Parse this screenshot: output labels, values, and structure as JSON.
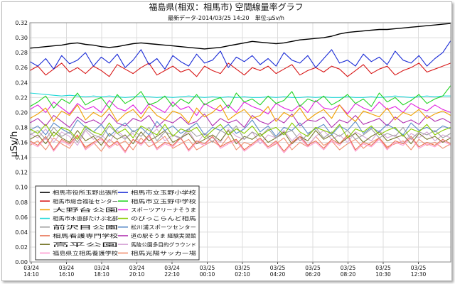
{
  "chart_data": {
    "type": "line",
    "title": "福島県(相双：相馬市) 空間線量率グラフ",
    "subtitle": "最新データ-2014/03/25 14:20　単位:μSv/h",
    "ylabel": "μSv/h",
    "xlabel": "",
    "ylim": [
      0,
      0.32
    ],
    "yticks": [
      "0.00",
      "0.02",
      "0.04",
      "0.06",
      "0.08",
      "0.10",
      "0.12",
      "0.14",
      "0.16",
      "0.18",
      "0.20",
      "0.22",
      "0.24",
      "0.26",
      "0.28",
      "0.30",
      "0.32"
    ],
    "xticks": [
      {
        "date": "03/24",
        "time": "14:10"
      },
      {
        "date": "03/24",
        "time": "16:10"
      },
      {
        "date": "03/24",
        "time": "18:10"
      },
      {
        "date": "03/24",
        "time": "20:10"
      },
      {
        "date": "03/24",
        "time": "22:10"
      },
      {
        "date": "03/25",
        "time": "00:10"
      },
      {
        "date": "03/25",
        "time": "02:10"
      },
      {
        "date": "03/25",
        "time": "04:20"
      },
      {
        "date": "03/25",
        "time": "06:20"
      },
      {
        "date": "03/25",
        "time": "08:20"
      },
      {
        "date": "03/25",
        "time": "10:30"
      },
      {
        "date": "03/25",
        "time": "12:30"
      }
    ],
    "grid": true,
    "legend_position": "bottom-left",
    "series": [
      {
        "name": "相馬市役所玉野出張所",
        "color": "#000000",
        "values": [
          0.286,
          0.287,
          0.288,
          0.289,
          0.29,
          0.292,
          0.293,
          0.291,
          0.29,
          0.288,
          0.287,
          0.288,
          0.29,
          0.292,
          0.293,
          0.292,
          0.291,
          0.29,
          0.289,
          0.288,
          0.287,
          0.286,
          0.285,
          0.286,
          0.287,
          0.289,
          0.291,
          0.293,
          0.295,
          0.294,
          0.293,
          0.292,
          0.293,
          0.295,
          0.297,
          0.298,
          0.299,
          0.3,
          0.302,
          0.305,
          0.307,
          0.308,
          0.309,
          0.31,
          0.311,
          0.311,
          0.312,
          0.313,
          0.314,
          0.315,
          0.316,
          0.317,
          0.318,
          0.319
        ]
      },
      {
        "name": "相馬市立玉野小学校",
        "color": "#1a2bd6",
        "values": [
          0.268,
          0.262,
          0.272,
          0.258,
          0.276,
          0.265,
          0.27,
          0.28,
          0.262,
          0.274,
          0.266,
          0.278,
          0.26,
          0.27,
          0.284,
          0.264,
          0.272,
          0.258,
          0.276,
          0.268,
          0.262,
          0.278,
          0.266,
          0.27,
          0.282,
          0.26,
          0.274,
          0.268,
          0.276,
          0.264,
          0.272,
          0.262,
          0.28,
          0.27,
          0.266,
          0.276,
          0.26,
          0.272,
          0.284,
          0.266,
          0.27,
          0.262,
          0.278,
          0.268,
          0.274,
          0.264,
          0.282,
          0.27,
          0.266,
          0.276,
          0.262,
          0.272,
          0.28,
          0.296
        ]
      },
      {
        "name": "相馬市総合福祉センター",
        "color": "#d81818",
        "values": [
          0.256,
          0.262,
          0.25,
          0.258,
          0.266,
          0.254,
          0.26,
          0.252,
          0.262,
          0.256,
          0.248,
          0.264,
          0.258,
          0.252,
          0.26,
          0.266,
          0.25,
          0.256,
          0.262,
          0.254,
          0.258,
          0.248,
          0.262,
          0.256,
          0.252,
          0.266,
          0.258,
          0.25,
          0.26,
          0.256,
          0.262,
          0.252,
          0.258,
          0.264,
          0.25,
          0.256,
          0.26,
          0.254,
          0.262,
          0.258,
          0.248,
          0.256,
          0.264,
          0.252,
          0.258,
          0.262,
          0.25,
          0.256,
          0.26,
          0.266,
          0.254,
          0.258,
          0.262,
          0.266
        ]
      },
      {
        "name": "相馬市立玉野中学校",
        "color": "#22d422",
        "values": [
          0.208,
          0.214,
          0.222,
          0.206,
          0.218,
          0.212,
          0.226,
          0.21,
          0.216,
          0.22,
          0.206,
          0.224,
          0.212,
          0.218,
          0.228,
          0.21,
          0.214,
          0.222,
          0.208,
          0.218,
          0.212,
          0.224,
          0.21,
          0.216,
          0.22,
          0.206,
          0.226,
          0.214,
          0.218,
          0.21,
          0.222,
          0.212,
          0.216,
          0.228,
          0.208,
          0.218,
          0.214,
          0.222,
          0.21,
          0.216,
          0.224,
          0.212,
          0.218,
          0.208,
          0.226,
          0.214,
          0.22,
          0.21,
          0.216,
          0.224,
          0.212,
          0.218,
          0.222,
          0.236
        ]
      },
      {
        "name": "大野台公園",
        "color": "#f0a000",
        "values": [
          0.192,
          0.198,
          0.206,
          0.188,
          0.202,
          0.196,
          0.21,
          0.19,
          0.2,
          0.194,
          0.206,
          0.188,
          0.198,
          0.204,
          0.192,
          0.208,
          0.196,
          0.19,
          0.202,
          0.198,
          0.186,
          0.206,
          0.194,
          0.2,
          0.21,
          0.19,
          0.198,
          0.204,
          0.192,
          0.196,
          0.208,
          0.188,
          0.2,
          0.194,
          0.206,
          0.19,
          0.198,
          0.204,
          0.192,
          0.21,
          0.196,
          0.188,
          0.202,
          0.198,
          0.194,
          0.206,
          0.19,
          0.2,
          0.196,
          0.204,
          0.192,
          0.198,
          0.202,
          0.196
        ]
      },
      {
        "name": "スポーツアリーナそうま",
        "color": "#e020e0",
        "values": [
          0.204,
          0.21,
          0.2,
          0.214,
          0.206,
          0.198,
          0.212,
          0.204,
          0.208,
          0.2,
          0.216,
          0.206,
          0.202,
          0.21,
          0.198,
          0.212,
          0.206,
          0.2,
          0.214,
          0.204,
          0.208,
          0.196,
          0.212,
          0.206,
          0.202,
          0.21,
          0.2,
          0.214,
          0.208,
          0.204,
          0.198,
          0.212,
          0.206,
          0.202,
          0.21,
          0.2,
          0.216,
          0.206,
          0.204,
          0.21,
          0.198,
          0.212,
          0.206,
          0.202,
          0.214,
          0.204,
          0.208,
          0.2,
          0.212,
          0.206,
          0.202,
          0.21,
          0.204,
          0.2
        ]
      },
      {
        "name": "相馬市水道部たけぶ北部",
        "color": "#20d8d8",
        "values": [
          0.226,
          0.225,
          0.224,
          0.223,
          0.222,
          0.223,
          0.222,
          0.221,
          0.222,
          0.221,
          0.222,
          0.221,
          0.22,
          0.221,
          0.222,
          0.221,
          0.22,
          0.221,
          0.22,
          0.221,
          0.222,
          0.221,
          0.22,
          0.221,
          0.22,
          0.221,
          0.22,
          0.221,
          0.22,
          0.22,
          0.221,
          0.22,
          0.221,
          0.22,
          0.22,
          0.221,
          0.22,
          0.221,
          0.22,
          0.22,
          0.221,
          0.22,
          0.22,
          0.221,
          0.22,
          0.221,
          0.222,
          0.221,
          0.22,
          0.221,
          0.222,
          0.221,
          0.222,
          0.222
        ]
      },
      {
        "name": "のびっこらんど相馬",
        "color": "#88cc00",
        "values": [
          0.178,
          0.172,
          0.184,
          0.168,
          0.18,
          0.176,
          0.164,
          0.182,
          0.174,
          0.17,
          0.186,
          0.172,
          0.178,
          0.166,
          0.182,
          0.176,
          0.17,
          0.184,
          0.168,
          0.178,
          0.174,
          0.18,
          0.166,
          0.176,
          0.184,
          0.17,
          0.178,
          0.172,
          0.182,
          0.168,
          0.176,
          0.18,
          0.17,
          0.186,
          0.174,
          0.168,
          0.18,
          0.176,
          0.172,
          0.184,
          0.166,
          0.178,
          0.174,
          0.182,
          0.17,
          0.176,
          0.18,
          0.168,
          0.178,
          0.174,
          0.184,
          0.17,
          0.176,
          0.18
        ]
      },
      {
        "name": "前沢目公園",
        "color": "#a0a0a0",
        "values": [
          0.17,
          0.176,
          0.164,
          0.18,
          0.168,
          0.174,
          0.16,
          0.178,
          0.17,
          0.166,
          0.182,
          0.172,
          0.164,
          0.176,
          0.168,
          0.18,
          0.162,
          0.174,
          0.17,
          0.166,
          0.178,
          0.168,
          0.172,
          0.16,
          0.176,
          0.17,
          0.182,
          0.164,
          0.174,
          0.168,
          0.178,
          0.166,
          0.172,
          0.176,
          0.162,
          0.17,
          0.18,
          0.166,
          0.174,
          0.168,
          0.176,
          0.164,
          0.17,
          0.178,
          0.166,
          0.172,
          0.168,
          0.18,
          0.164,
          0.174,
          0.17,
          0.176,
          0.166,
          0.172
        ]
      },
      {
        "name": "松川浦スポーツセンター",
        "color": "#5a8cc8",
        "values": [
          0.176,
          0.182,
          0.17,
          0.186,
          0.178,
          0.172,
          0.19,
          0.18,
          0.174,
          0.184,
          0.168,
          0.178,
          0.186,
          0.174,
          0.18,
          0.17,
          0.188,
          0.176,
          0.182,
          0.172,
          0.178,
          0.186,
          0.17,
          0.18,
          0.176,
          0.184,
          0.172,
          0.178,
          0.19,
          0.174,
          0.182,
          0.168,
          0.18,
          0.176,
          0.186,
          0.172,
          0.178,
          0.184,
          0.17,
          0.182,
          0.176,
          0.188,
          0.172,
          0.18,
          0.174,
          0.184,
          0.178,
          0.17,
          0.186,
          0.176,
          0.18,
          0.174,
          0.182,
          0.178
        ]
      },
      {
        "name": "相馬看護専門学校",
        "color": "#e87050",
        "values": [
          0.162,
          0.156,
          0.168,
          0.15,
          0.164,
          0.158,
          0.17,
          0.152,
          0.16,
          0.166,
          0.154,
          0.162,
          0.148,
          0.164,
          0.158,
          0.17,
          0.152,
          0.16,
          0.156,
          0.166,
          0.15,
          0.162,
          0.158,
          0.168,
          0.154,
          0.16,
          0.164,
          0.15,
          0.158,
          0.166,
          0.154,
          0.162,
          0.148,
          0.16,
          0.168,
          0.156,
          0.162,
          0.152,
          0.164,
          0.158,
          0.17,
          0.15,
          0.16,
          0.156,
          0.166,
          0.152,
          0.162,
          0.158,
          0.168,
          0.154,
          0.16,
          0.156,
          0.164,
          0.158
        ]
      },
      {
        "name": "道の駅そうま 経験実習館",
        "color": "#b030b0",
        "values": [
          0.186,
          0.192,
          0.182,
          0.196,
          0.188,
          0.18,
          0.194,
          0.186,
          0.19,
          0.184,
          0.198,
          0.186,
          0.182,
          0.192,
          0.188,
          0.196,
          0.18,
          0.19,
          0.186,
          0.194,
          0.184,
          0.188,
          0.198,
          0.182,
          0.192,
          0.186,
          0.19,
          0.18,
          0.196,
          0.188,
          0.184,
          0.192,
          0.186,
          0.198,
          0.182,
          0.19,
          0.188,
          0.194,
          0.18,
          0.19,
          0.186,
          0.196,
          0.184,
          0.188,
          0.192,
          0.182,
          0.194,
          0.186,
          0.19,
          0.184,
          0.196,
          0.188,
          0.192,
          0.186
        ]
      },
      {
        "name": "高平公園",
        "color": "#7a7a30",
        "values": [
          0.164,
          0.17,
          0.158,
          0.174,
          0.166,
          0.16,
          0.176,
          0.162,
          0.168,
          0.156,
          0.172,
          0.164,
          0.17,
          0.158,
          0.174,
          0.162,
          0.168,
          0.176,
          0.16,
          0.166,
          0.172,
          0.158,
          0.164,
          0.17,
          0.162,
          0.176,
          0.158,
          0.168,
          0.164,
          0.172,
          0.16,
          0.166,
          0.174,
          0.158,
          0.168,
          0.162,
          0.176,
          0.164,
          0.17,
          0.158,
          0.166,
          0.172,
          0.16,
          0.168,
          0.174,
          0.162,
          0.166,
          0.17,
          0.158,
          0.172,
          0.164,
          0.168,
          0.16,
          0.166
        ]
      },
      {
        "name": "馬陵公園多目的グラウンド",
        "color": "#d8a8d8",
        "values": [
          0.172,
          0.166,
          0.178,
          0.16,
          0.174,
          0.168,
          0.156,
          0.176,
          0.164,
          0.17,
          0.16,
          0.176,
          0.166,
          0.172,
          0.158,
          0.168,
          0.178,
          0.162,
          0.17,
          0.164,
          0.176,
          0.158,
          0.172,
          0.166,
          0.16,
          0.178,
          0.168,
          0.164,
          0.174,
          0.158,
          0.17,
          0.166,
          0.176,
          0.162,
          0.172,
          0.156,
          0.168,
          0.176,
          0.164,
          0.17,
          0.16,
          0.174,
          0.168,
          0.162,
          0.176,
          0.166,
          0.17,
          0.158,
          0.172,
          0.166,
          0.174,
          0.162,
          0.17,
          0.166
        ]
      },
      {
        "name": "福島県立相馬養護学校",
        "color": "#ff9ad0",
        "values": [
          0.16,
          0.154,
          0.166,
          0.148,
          0.162,
          0.156,
          0.17,
          0.15,
          0.158,
          0.164,
          0.152,
          0.16,
          0.146,
          0.164,
          0.156,
          0.168,
          0.15,
          0.158,
          0.154,
          0.166,
          0.148,
          0.16,
          0.156,
          0.168,
          0.152,
          0.158,
          0.162,
          0.148,
          0.156,
          0.164,
          0.152,
          0.16,
          0.146,
          0.158,
          0.166,
          0.154,
          0.16,
          0.15,
          0.162,
          0.156,
          0.168,
          0.148,
          0.158,
          0.154,
          0.164,
          0.15,
          0.16,
          0.156,
          0.166,
          0.152,
          0.158,
          0.154,
          0.162,
          0.156
        ]
      },
      {
        "name": "相馬光陽サッカー場",
        "color": "#f09070",
        "values": [
          0.156,
          0.162,
          0.15,
          0.166,
          0.158,
          0.152,
          0.168,
          0.154,
          0.16,
          0.148,
          0.164,
          0.156,
          0.162,
          0.15,
          0.166,
          0.154,
          0.16,
          0.168,
          0.152,
          0.158,
          0.164,
          0.15,
          0.156,
          0.162,
          0.154,
          0.168,
          0.15,
          0.16,
          0.156,
          0.164,
          0.152,
          0.158,
          0.166,
          0.15,
          0.16,
          0.154,
          0.168,
          0.156,
          0.162,
          0.15,
          0.158,
          0.164,
          0.152,
          0.16,
          0.166,
          0.154,
          0.158,
          0.162,
          0.15,
          0.164,
          0.156,
          0.16,
          0.152,
          0.158
        ]
      }
    ]
  }
}
